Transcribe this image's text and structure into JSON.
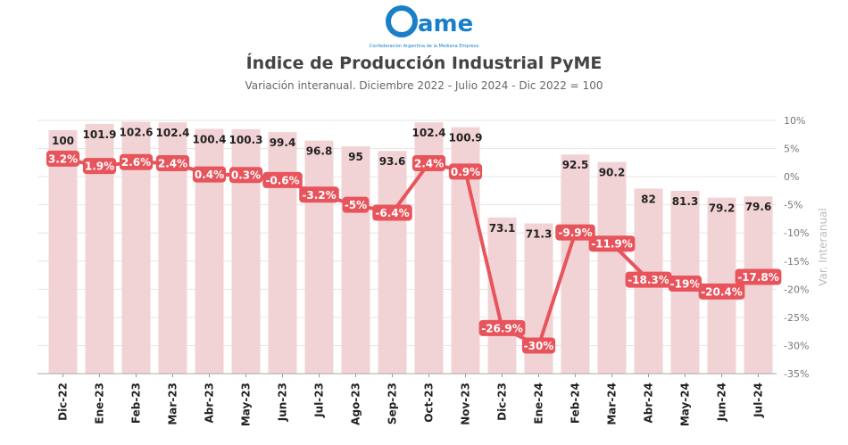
{
  "logo": {
    "text": "Came",
    "tagline": "Confederación Argentina de la Mediana Empresa"
  },
  "colors": {
    "bar": "#f2d3d5",
    "line": "#e8545c",
    "grid": "#e6e6e6",
    "text": "#222222",
    "axis_text": "#777777"
  },
  "chart_data": {
    "type": "bar",
    "title": "Índice de Producción Industrial PyME",
    "subtitle": "Variación interanual. Diciembre 2022 - Julio 2024 - Dic 2022 = 100",
    "categories": [
      "Dic-22",
      "Ene-23",
      "Feb-23",
      "Mar-23",
      "Abr-23",
      "May-23",
      "Jun-23",
      "Jul-23",
      "Ago-23",
      "Sep-23",
      "Oct-23",
      "Nov-23",
      "Dic-23",
      "Ene-24",
      "Feb-24",
      "Mar-24",
      "Abr-24",
      "May-24",
      "Jun-24",
      "Jul-24"
    ],
    "series": [
      {
        "name": "Índice (Dic 2022 = 100)",
        "type": "bar",
        "values": [
          100,
          101.9,
          102.6,
          102.4,
          100.4,
          100.3,
          99.4,
          96.8,
          95,
          93.6,
          102.4,
          100.9,
          73.1,
          71.3,
          92.5,
          90.2,
          82,
          81.3,
          79.2,
          79.6
        ],
        "labels": [
          "100",
          "101.9",
          "102.6",
          "102.4",
          "100.4",
          "100.3",
          "99.4",
          "96.8",
          "95",
          "93.6",
          "102.4",
          "100.9",
          "73.1",
          "71.3",
          "92.5",
          "90.2",
          "82",
          "81.3",
          "79.2",
          "79.6"
        ]
      },
      {
        "name": "Var. interanual (%)",
        "type": "line",
        "values": [
          3.2,
          1.9,
          2.6,
          2.4,
          0.4,
          0.3,
          -0.6,
          -3.2,
          -5,
          -6.4,
          2.4,
          0.9,
          -26.9,
          -30,
          -9.9,
          -11.9,
          -18.3,
          -19,
          -20.4,
          -17.8
        ],
        "labels": [
          "3.2%",
          "1.9%",
          "2.6%",
          "2.4%",
          "0.4%",
          "0.3%",
          "-0.6%",
          "-3.2%",
          "-5%",
          "-6.4%",
          "2.4%",
          "0.9%",
          "-26.9%",
          "-30%",
          "-9.9%",
          "-11.9%",
          "-18.3%",
          "-19%",
          "-20.4%",
          "-17.8%"
        ]
      }
    ],
    "y2": {
      "label": "Var. Interanual",
      "range": [
        -35,
        10
      ],
      "ticks": [
        10,
        5,
        0,
        -5,
        -10,
        -15,
        -20,
        -25,
        -30,
        -35
      ],
      "tick_labels": [
        "10%",
        "5%",
        "0%",
        "-5%",
        "-10%",
        "-15%",
        "-20%",
        "-25%",
        "-30%",
        "-35%"
      ]
    },
    "bar_axis_range": [
      25,
      103
    ]
  }
}
